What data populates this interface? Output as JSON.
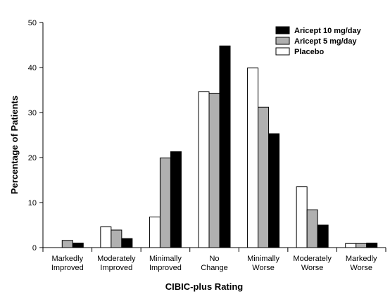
{
  "chart_data": {
    "type": "bar",
    "title": "",
    "xlabel": "CIBIC-plus Rating",
    "ylabel": "Percentage of Patients",
    "ylim": [
      0,
      50
    ],
    "yticks": [
      0,
      10,
      20,
      30,
      40,
      50
    ],
    "grid": false,
    "legend_position": "top-right",
    "categories": [
      [
        "Markedly",
        "Improved"
      ],
      [
        "Moderately",
        "Improved"
      ],
      [
        "Minimally",
        "Improved"
      ],
      [
        "No",
        "Change"
      ],
      [
        "Minimally",
        "Worse"
      ],
      [
        "Moderately",
        "Worse"
      ],
      [
        "Markedly",
        "Worse"
      ]
    ],
    "series": [
      {
        "name": "Placebo",
        "color": "#ffffff",
        "values": [
          0,
          4.6,
          6.8,
          34.6,
          39.9,
          13.5,
          0.9
        ]
      },
      {
        "name": "Aricept 5 mg/day",
        "color": "#b0b0b0",
        "values": [
          1.6,
          3.9,
          19.9,
          34.3,
          31.2,
          8.4,
          0.9
        ]
      },
      {
        "name": "Aricept 10 mg/day",
        "color": "#000000",
        "values": [
          1.0,
          2.0,
          21.3,
          44.8,
          25.3,
          5.0,
          1.0
        ]
      }
    ],
    "legend_order": [
      "Aricept 10 mg/day",
      "Aricept 5 mg/day",
      "Placebo"
    ]
  }
}
